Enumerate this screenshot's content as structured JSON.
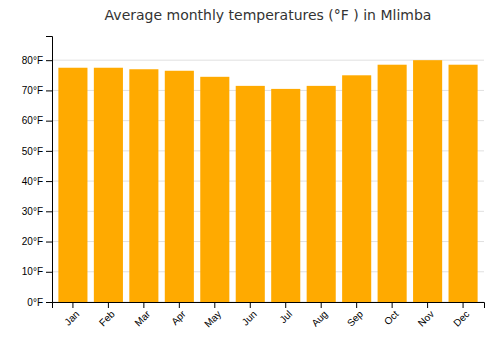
{
  "chart_data": {
    "type": "bar",
    "title": "Average monthly temperatures (°F ) in Mlimba",
    "categories": [
      "Jan",
      "Feb",
      "Mar",
      "Apr",
      "May",
      "Jun",
      "Jul",
      "Aug",
      "Sep",
      "Oct",
      "Nov",
      "Dec"
    ],
    "values": [
      77.5,
      77.5,
      77.0,
      76.5,
      74.5,
      71.5,
      70.5,
      71.5,
      75.0,
      78.5,
      80.0,
      78.5
    ],
    "color": "#FFAA00",
    "ylim": [
      0,
      88
    ],
    "yticks": [
      {
        "value": 0,
        "label": "0°F"
      },
      {
        "value": 10,
        "label": "10°F"
      },
      {
        "value": 20,
        "label": "20°F"
      },
      {
        "value": 30,
        "label": "30°F"
      },
      {
        "value": 40,
        "label": "40°F"
      },
      {
        "value": 50,
        "label": "50°F"
      },
      {
        "value": 60,
        "label": "60°F"
      },
      {
        "value": 70,
        "label": "70°F"
      },
      {
        "value": 80,
        "label": "80°F"
      }
    ],
    "grid": true
  }
}
